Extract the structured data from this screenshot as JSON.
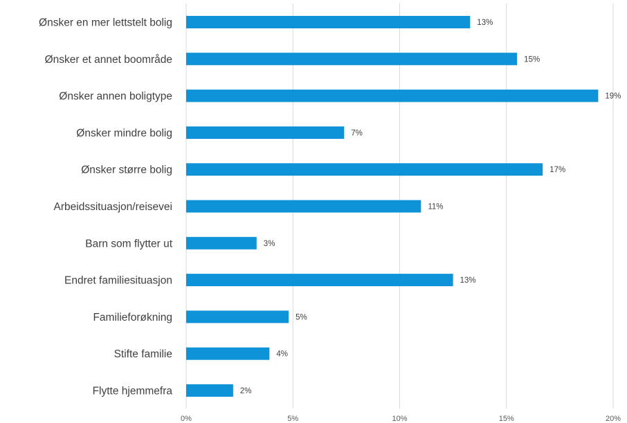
{
  "chart_data": {
    "type": "bar",
    "orientation": "horizontal",
    "title": "",
    "xlabel": "",
    "ylabel": "",
    "categories": [
      "Ønsker en mer lettstelt bolig",
      "Ønsker et annet boområde",
      "Ønsker annen boligtype",
      "Ønsker mindre bolig",
      "Ønsker større bolig",
      "Arbeidssituasjon/reisevei",
      "Barn som flytter ut",
      "Endret familiesituasjon",
      "Familieforøkning",
      "Stifte familie",
      "Flytte hjemmefra"
    ],
    "values": [
      0.133,
      0.155,
      0.193,
      0.074,
      0.167,
      0.11,
      0.033,
      0.125,
      0.048,
      0.039,
      0.022
    ],
    "data_labels": [
      "13%",
      "15%",
      "19%",
      "7%",
      "17%",
      "11%",
      "3%",
      "13%",
      "5%",
      "4%",
      "2%"
    ],
    "xlim": [
      0,
      0.2
    ],
    "x_ticks": [
      0,
      0.05,
      0.1,
      0.15,
      0.2
    ],
    "x_tick_labels": [
      "0%",
      "5%",
      "10%",
      "15%",
      "20%"
    ],
    "grid": "vertical",
    "legend": "none",
    "colors": {
      "bar": "#0f93d8",
      "grid": "#d9d9d9",
      "text": "#404040"
    }
  }
}
